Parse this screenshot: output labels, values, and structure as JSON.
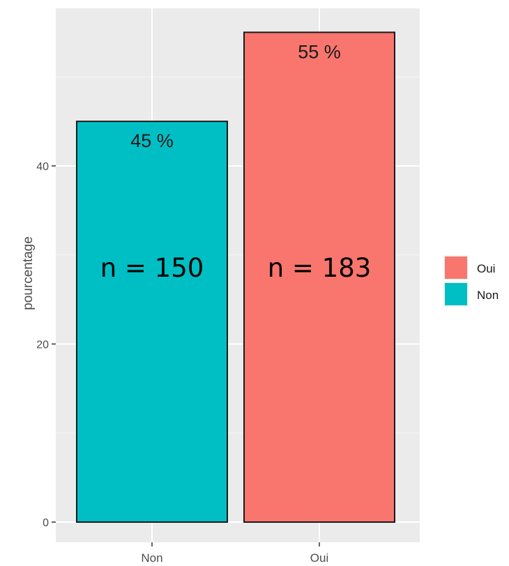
{
  "chart_data": {
    "type": "bar",
    "categories": [
      "Non",
      "Oui"
    ],
    "values": [
      45,
      55
    ],
    "percent_labels": [
      "45 %",
      "55 %"
    ],
    "count_labels": [
      "n = 150",
      "n = 183"
    ],
    "colors": [
      "#00BFC4",
      "#F8766D"
    ],
    "xlabel": "",
    "ylabel": "pourcentage",
    "ylim": [
      0,
      57.3
    ],
    "y_ticks": [
      0,
      20,
      40
    ],
    "grid": true,
    "legend": {
      "position": "right",
      "entries": [
        {
          "label": "Oui",
          "color": "#F8766D"
        },
        {
          "label": "Non",
          "color": "#00BFC4"
        }
      ]
    }
  }
}
